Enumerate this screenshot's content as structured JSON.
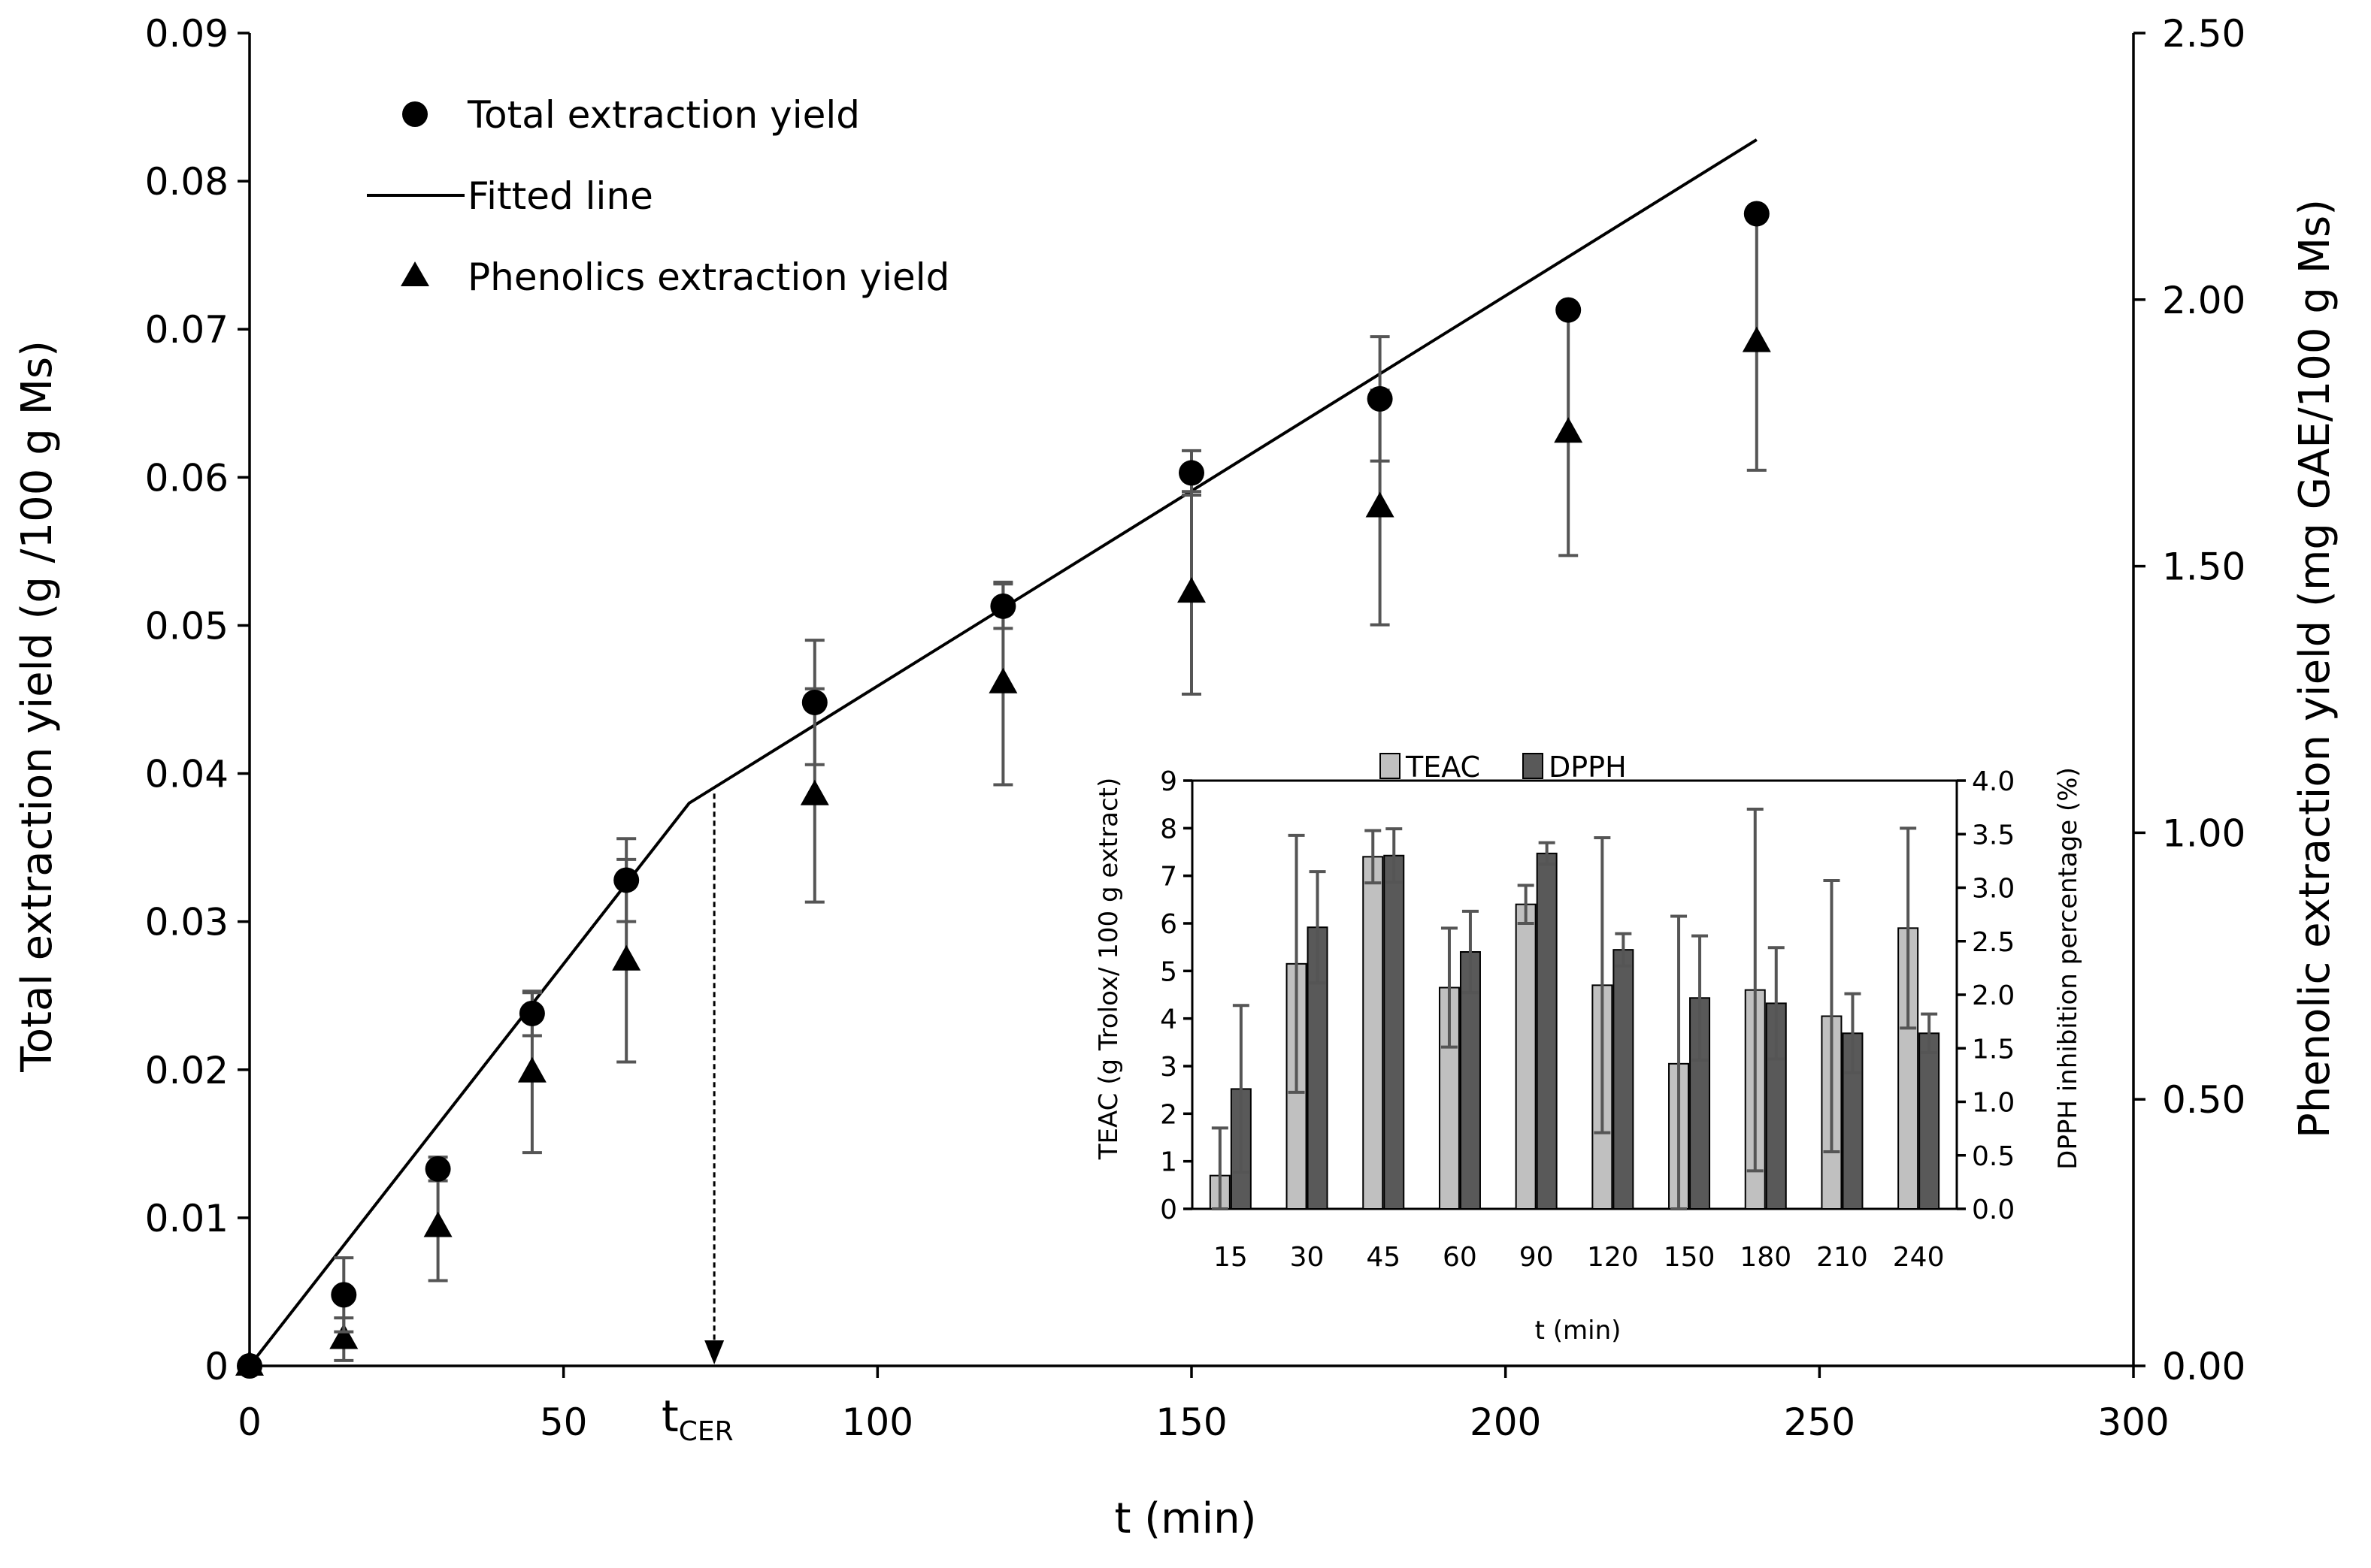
{
  "chart_data": [
    {
      "type": "scatter",
      "title": "",
      "xlabel": "t (min)",
      "ylabel": "Total extraction yield (g /100 g Ms)",
      "y2label": "Phenolic extraction yield (mg GAE/100 g Ms)",
      "xlim": [
        0,
        300
      ],
      "ylim": [
        0,
        0.09
      ],
      "y2lim": [
        0,
        2.5
      ],
      "xticks": [
        "0",
        "50",
        "100",
        "150",
        "200",
        "250",
        "300"
      ],
      "yticks": [
        "0",
        "0.01",
        "0.02",
        "0.03",
        "0.04",
        "0.05",
        "0.06",
        "0.07",
        "0.08",
        "0.09"
      ],
      "y2ticks": [
        "0.00",
        "0.50",
        "1.00",
        "1.50",
        "2.00",
        "2.50"
      ],
      "legend": [
        "Total extraction yield",
        "Fitted line",
        "Phenolics extraction yield"
      ],
      "annotation": {
        "base": "t",
        "subscript": "CER",
        "x": 74
      },
      "series": [
        {
          "name": "Total extraction yield",
          "marker": "circle",
          "axis": "left",
          "x": [
            0,
            15,
            30,
            45,
            60,
            90,
            120,
            150,
            180,
            210,
            240
          ],
          "y": [
            0,
            0.0048,
            0.0133,
            0.0238,
            0.0328,
            0.0448,
            0.0513,
            0.0603,
            0.0653,
            0.0713,
            0.0778
          ],
          "err": [
            0,
            0.0025,
            0.0008,
            0.0015,
            0.0028,
            0.0042,
            0.0015,
            0.0015,
            0.0042,
            0.0,
            0.0
          ]
        },
        {
          "name": "Fitted line",
          "marker": "line",
          "axis": "left",
          "x": [
            0,
            70,
            240
          ],
          "y": [
            0,
            0.038,
            0.0828
          ]
        },
        {
          "name": "Phenolics extraction yield",
          "marker": "triangle",
          "axis": "right",
          "x": [
            0,
            15,
            30,
            45,
            60,
            90,
            120,
            150,
            180,
            210,
            240
          ],
          "y": [
            0.0,
            0.05,
            0.26,
            0.55,
            0.76,
            1.07,
            1.28,
            1.45,
            1.61,
            1.75,
            1.92
          ],
          "err": [
            0,
            0.04,
            0.1,
            0.15,
            0.19,
            0.2,
            0.19,
            0.19,
            0.22,
            0.23,
            0.24
          ]
        }
      ]
    },
    {
      "type": "bar",
      "title": "",
      "xlabel": "t (min)",
      "ylabel": "TEAC (g Trolox/ 100 g extract)",
      "y2label": "DPPH inhibition percentage (%)",
      "categories": [
        "15",
        "30",
        "45",
        "60",
        "90",
        "120",
        "150",
        "180",
        "210",
        "240"
      ],
      "ylim": [
        0,
        9
      ],
      "y2lim": [
        0,
        4
      ],
      "yticks": [
        "0",
        "1",
        "2",
        "3",
        "4",
        "5",
        "6",
        "7",
        "8",
        "9"
      ],
      "y2ticks": [
        "0.0",
        "0.5",
        "1.0",
        "1.5",
        "2.0",
        "2.5",
        "3.0",
        "3.5",
        "4.0"
      ],
      "legend": [
        "TEAC",
        "DPPH"
      ],
      "colors": {
        "TEAC": "#c0c0c0",
        "DPPH": "#595959"
      },
      "series": [
        {
          "name": "TEAC",
          "axis": "left",
          "values": [
            0.7,
            5.15,
            7.4,
            4.65,
            6.4,
            4.7,
            3.05,
            4.6,
            4.05,
            5.9
          ],
          "err": [
            1.0,
            2.7,
            0.55,
            1.25,
            0.4,
            3.1,
            3.1,
            3.8,
            2.85,
            2.1
          ]
        },
        {
          "name": "DPPH",
          "axis": "right",
          "values": [
            1.12,
            2.63,
            3.3,
            2.4,
            3.32,
            2.42,
            1.97,
            1.92,
            1.64,
            1.64
          ],
          "err": [
            0.78,
            0.52,
            0.25,
            0.38,
            0.1,
            0.15,
            0.58,
            0.52,
            0.37,
            0.18
          ]
        }
      ]
    }
  ]
}
